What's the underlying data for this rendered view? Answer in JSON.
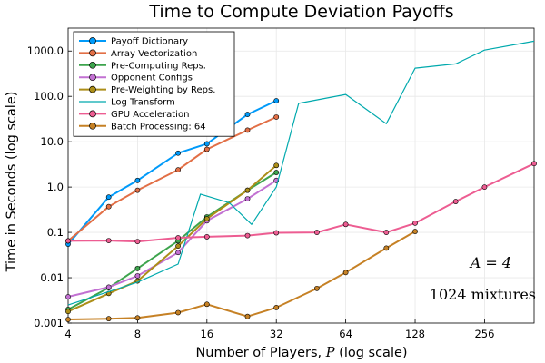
{
  "chart_data": {
    "type": "line",
    "title": "Time to Compute Deviation Payoffs",
    "xlabel_text": "Number of Players, ",
    "xlabel_var": "P",
    "xlabel_suffix": " (log scale)",
    "ylabel": "Time in Seconds (log scale)",
    "x_scale": "log2",
    "y_scale": "log10",
    "xlim": [
      4,
      420
    ],
    "ylim": [
      0.001,
      3200
    ],
    "grid": true,
    "legend_position": "top-left",
    "x_ticks": [
      4,
      8,
      16,
      32,
      64,
      128,
      256
    ],
    "x_tick_labels": [
      "4",
      "8",
      "16",
      "32",
      "64",
      "128",
      "256"
    ],
    "y_ticks": [
      0.001,
      0.01,
      0.1,
      1,
      10,
      100,
      1000
    ],
    "y_tick_labels": [
      "0.001",
      "0.01",
      "0.1",
      "1.0",
      "10.0",
      "100.0",
      "1000.0"
    ],
    "annotations": [
      "A = 4",
      "1024 mixtures"
    ],
    "series": [
      {
        "name": "Payoff Dictionary",
        "color": "#009af9",
        "markers": true,
        "x": [
          4,
          6,
          8,
          12,
          16,
          24,
          32
        ],
        "y": [
          0.055,
          0.6,
          1.4,
          5.6,
          9,
          40,
          80
        ]
      },
      {
        "name": "Array Vectorization",
        "color": "#e26f46",
        "markers": true,
        "x": [
          4,
          6,
          8,
          12,
          16,
          24,
          32
        ],
        "y": [
          0.065,
          0.37,
          0.85,
          2.4,
          6.8,
          18,
          35
        ]
      },
      {
        "name": "Pre-Computing Reps.",
        "color": "#3da44d",
        "markers": true,
        "x": [
          4,
          6,
          8,
          12,
          16,
          24,
          32
        ],
        "y": [
          0.002,
          0.006,
          0.016,
          0.065,
          0.22,
          0.85,
          2.1
        ]
      },
      {
        "name": "Opponent Configs",
        "color": "#c271d2",
        "markers": true,
        "x": [
          4,
          6,
          8,
          12,
          16,
          24,
          32
        ],
        "y": [
          0.0038,
          0.0062,
          0.011,
          0.036,
          0.18,
          0.55,
          1.4
        ]
      },
      {
        "name": "Pre-Weighting by Reps.",
        "color": "#ac8e18",
        "markers": true,
        "x": [
          4,
          6,
          8,
          12,
          16,
          24,
          32
        ],
        "y": [
          0.0018,
          0.0045,
          0.0085,
          0.05,
          0.2,
          0.85,
          3.0
        ]
      },
      {
        "name": "Log Transform",
        "color": "#00a9ad",
        "markers": false,
        "x": [
          4,
          8,
          12,
          15,
          20,
          25,
          32,
          40,
          64,
          96,
          128,
          192,
          256,
          420
        ],
        "y": [
          0.0025,
          0.008,
          0.02,
          0.7,
          0.45,
          0.15,
          1.0,
          70,
          110,
          25,
          420,
          520,
          1050,
          1650
        ]
      },
      {
        "name": "GPU Acceleration",
        "color": "#ed5d92",
        "markers": true,
        "x": [
          4,
          6,
          8,
          12,
          16,
          24,
          32,
          48,
          64,
          96,
          128,
          192,
          256,
          420
        ],
        "y": [
          0.065,
          0.066,
          0.063,
          0.076,
          0.08,
          0.085,
          0.098,
          0.1,
          0.15,
          0.1,
          0.16,
          0.48,
          1.0,
          3.3
        ]
      },
      {
        "name": "Batch Processing: 64",
        "color": "#c68125",
        "markers": true,
        "x": [
          4,
          6,
          8,
          12,
          16,
          24,
          32,
          48,
          64,
          96,
          128
        ],
        "y": [
          0.0012,
          0.00125,
          0.0013,
          0.0017,
          0.0026,
          0.0014,
          0.0022,
          0.0058,
          0.013,
          0.045,
          0.105
        ]
      }
    ]
  }
}
